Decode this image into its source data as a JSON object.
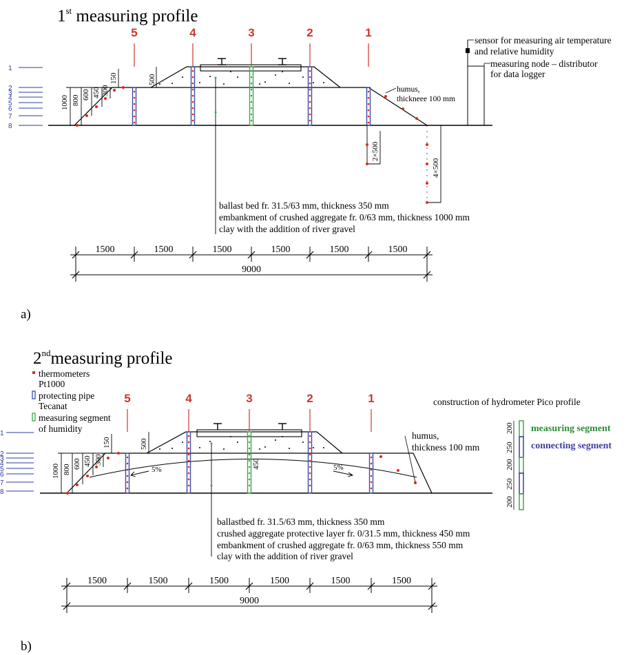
{
  "colors": {
    "line": "#000000",
    "profile_number": "#d0342c",
    "thermometer": "#e0261b",
    "pipe": "#3b4aa8",
    "humidity_segment": "#3aa84a",
    "measuring_segment_text": "#2f8a3a",
    "connecting_segment_text": "#3b3fa0",
    "level_label": "#2b3b9e"
  },
  "icons": [
    "thermometer-dot-icon",
    "protecting-pipe-icon",
    "humidity-segment-icon",
    "sensor-icon",
    "rail-icon",
    "slope-arrow-icon"
  ],
  "panel_a": {
    "title_num": "1",
    "title_sup": "st",
    "title_rest": " measuring profile",
    "panel_label": "a)",
    "profile_numbers": [
      "5",
      "4",
      "3",
      "2",
      "1"
    ],
    "level_labels": [
      "1",
      "2",
      "3",
      "4",
      "5",
      "6",
      "7",
      "8"
    ],
    "depth_dims": [
      "1000",
      "800",
      "600",
      "450",
      "300",
      "150"
    ],
    "top_dim": "500",
    "humus": [
      "humus,",
      "thickneee 100 mm"
    ],
    "sensor_text": [
      "sensor for measuring air temperature",
      "and relative humidity"
    ],
    "node_text": [
      "measuring node – distributor",
      "for data logger"
    ],
    "deep_dims": [
      "2×500",
      "4×500"
    ],
    "layers": [
      "ballast bed fr. 31.5/63 mm, thickness 350 mm",
      "embankment of crushed aggregate fr. 0/63 mm, thickness 1000 mm",
      "clay with the addition of river gravel"
    ],
    "span_dims": [
      "1500",
      "1500",
      "1500",
      "1500",
      "1500",
      "1500"
    ],
    "total_dim": "9000"
  },
  "panel_b": {
    "title_num": "2",
    "title_sup": "nd",
    "title_rest": "measuring profile",
    "panel_label": "b)",
    "legend": [
      {
        "icon": "thermometer-dot-icon",
        "lines": [
          "thermometers",
          "Pt1000"
        ]
      },
      {
        "icon": "protecting-pipe-icon",
        "lines": [
          "protecting pipe",
          "Tecanat"
        ]
      },
      {
        "icon": "humidity-segment-icon",
        "lines": [
          "measuring segment",
          "of humidity"
        ]
      }
    ],
    "profile_numbers": [
      "5",
      "4",
      "3",
      "2",
      "1"
    ],
    "level_labels": [
      "1",
      "2",
      "3",
      "4",
      "5",
      "6",
      "7",
      "8"
    ],
    "depth_dims": [
      "1000",
      "800",
      "600",
      "450",
      "300",
      "150"
    ],
    "top_dim": "500",
    "center_dim": "450",
    "slope_left": "5%",
    "slope_right": "5%",
    "humus": [
      "humus,",
      "thickness 100 mm"
    ],
    "pico_title": "construction of hydrometer Pico profile",
    "pico_dims": [
      "200",
      "250",
      "200",
      "250",
      "200"
    ],
    "pico_measuring": "measuring segment",
    "pico_connecting": "connecting segment",
    "layers": [
      "ballastbed fr. 31.5/63 mm, thickness 350 mm",
      "crushed aggregate protective layer fr. 0/31.5 mm, thickness 450 mm",
      "embankment of crushed aggregate fr. 0/63 mm, thickness 550 mm",
      "clay with the addition of river gravel"
    ],
    "span_dims": [
      "1500",
      "1500",
      "1500",
      "1500",
      "1500",
      "1500"
    ],
    "total_dim": "9000"
  }
}
